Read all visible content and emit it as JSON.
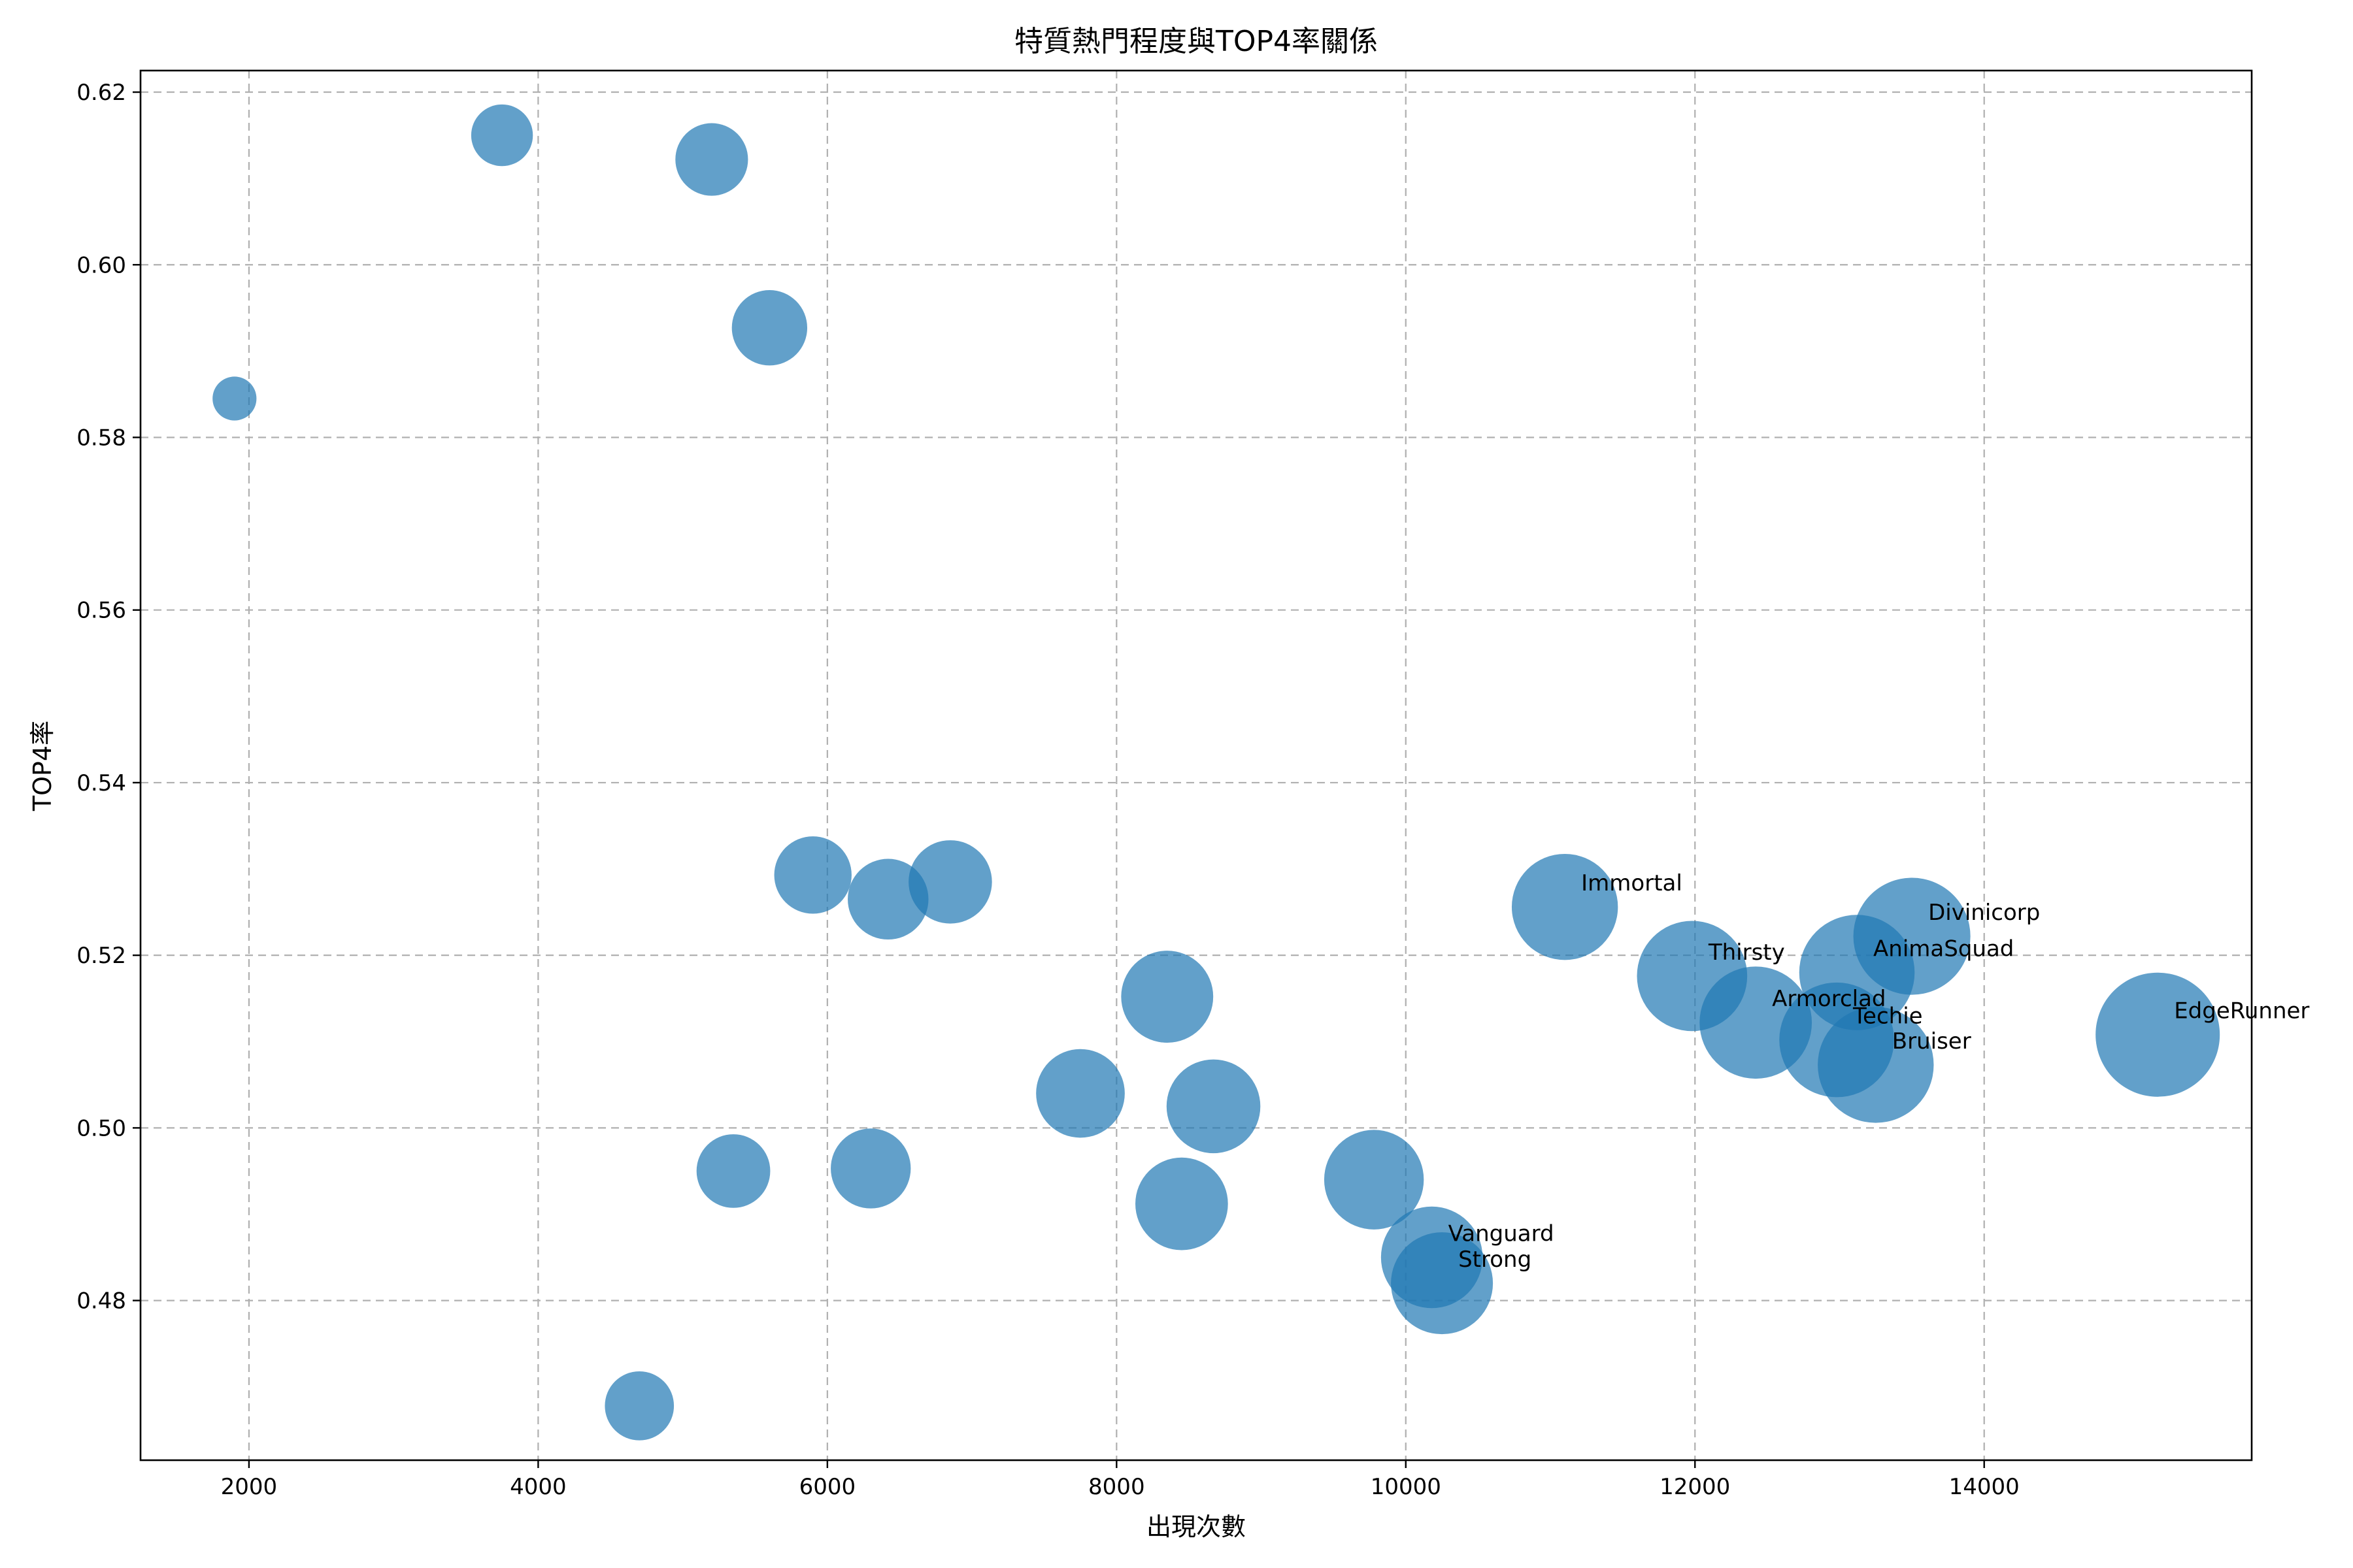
{
  "chart_data": {
    "type": "scatter",
    "title": "特質熱門程度與TOP4率關係",
    "xlabel": "出現次數",
    "ylabel": "TOP4率",
    "xlim": [
      1250,
      15850
    ],
    "ylim": [
      0.4615,
      0.6225
    ],
    "xticks": [
      "2000",
      "4000",
      "6000",
      "8000",
      "10000",
      "12000",
      "14000"
    ],
    "yticks": [
      "0.48",
      "0.50",
      "0.52",
      "0.54",
      "0.56",
      "0.58",
      "0.60",
      "0.62"
    ],
    "grid": true,
    "color": "#1f77b4",
    "points": [
      {
        "x": 1900,
        "y": 0.5845,
        "label": ""
      },
      {
        "x": 3750,
        "y": 0.615,
        "label": ""
      },
      {
        "x": 5200,
        "y": 0.6122,
        "label": ""
      },
      {
        "x": 5600,
        "y": 0.5927,
        "label": ""
      },
      {
        "x": 4700,
        "y": 0.4678,
        "label": ""
      },
      {
        "x": 5350,
        "y": 0.495,
        "label": ""
      },
      {
        "x": 5900,
        "y": 0.5293,
        "label": ""
      },
      {
        "x": 6300,
        "y": 0.4953,
        "label": ""
      },
      {
        "x": 6420,
        "y": 0.5265,
        "label": ""
      },
      {
        "x": 6850,
        "y": 0.5285,
        "label": ""
      },
      {
        "x": 7750,
        "y": 0.504,
        "label": ""
      },
      {
        "x": 8350,
        "y": 0.5152,
        "label": ""
      },
      {
        "x": 8450,
        "y": 0.4912,
        "label": ""
      },
      {
        "x": 8670,
        "y": 0.5025,
        "label": ""
      },
      {
        "x": 9780,
        "y": 0.494,
        "label": ""
      },
      {
        "x": 10180,
        "y": 0.485,
        "label": "Vanguard"
      },
      {
        "x": 10250,
        "y": 0.482,
        "label": "Strong"
      },
      {
        "x": 11100,
        "y": 0.5256,
        "label": "Immortal"
      },
      {
        "x": 11980,
        "y": 0.5176,
        "label": "Thirsty"
      },
      {
        "x": 12420,
        "y": 0.5122,
        "label": "Armorclad"
      },
      {
        "x": 12980,
        "y": 0.5102,
        "label": "Techie"
      },
      {
        "x": 13120,
        "y": 0.518,
        "label": "AnimaSquad"
      },
      {
        "x": 13250,
        "y": 0.5073,
        "label": "Bruiser"
      },
      {
        "x": 13500,
        "y": 0.5222,
        "label": "Divinicorp"
      },
      {
        "x": 15200,
        "y": 0.5108,
        "label": "EdgeRunner"
      }
    ]
  }
}
